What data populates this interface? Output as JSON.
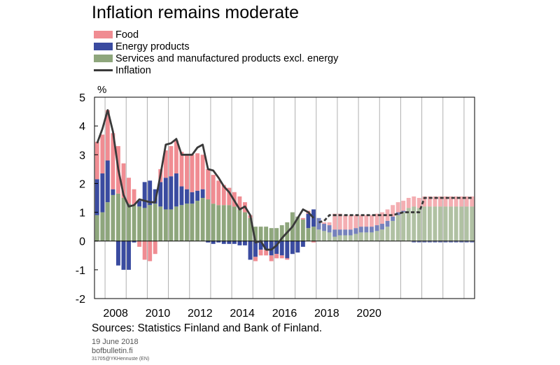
{
  "chart_data": {
    "type": "bar",
    "title": "Inflation remains moderate",
    "ylabel": "%",
    "ylim": [
      -2,
      5
    ],
    "yticks": [
      5,
      4,
      3,
      2,
      1,
      0,
      -1,
      -2
    ],
    "grid": "vertical year lines",
    "legend_placement": "top-left",
    "x_tick_labels": [
      "2008",
      "2010",
      "2012",
      "2014",
      "2016",
      "2018",
      "2020"
    ],
    "x_tick_years": [
      2008,
      2010,
      2012,
      2014,
      2016,
      2018,
      2020
    ],
    "x_start_year": 2007.5,
    "quarters_per_year": 4,
    "forecast_from_index": 42,
    "legend": [
      {
        "key": "food",
        "label": "Food",
        "color": "#f08c92"
      },
      {
        "key": "energy",
        "label": "Energy products",
        "color": "#3a4ba0"
      },
      {
        "key": "services",
        "label": "Services and manufactured products excl. energy",
        "color": "#8ea67c"
      },
      {
        "key": "inflation",
        "label": "Inflation",
        "color": "#3a3a3a"
      }
    ],
    "series": [
      {
        "name": "Services and manufactured products excl. energy",
        "key": "services",
        "values": [
          0.9,
          1.0,
          1.35,
          1.6,
          1.65,
          1.5,
          1.3,
          1.25,
          1.2,
          1.15,
          1.25,
          1.3,
          1.2,
          1.1,
          1.1,
          1.2,
          1.25,
          1.3,
          1.3,
          1.4,
          1.5,
          1.45,
          1.3,
          1.25,
          1.25,
          1.25,
          1.2,
          1.1,
          1.0,
          0.8,
          0.5,
          0.5,
          0.5,
          0.45,
          0.45,
          0.55,
          0.65,
          1.0,
          0.85,
          0.75,
          0.45,
          0.5,
          0.4,
          0.35,
          0.3,
          0.15,
          0.2,
          0.2,
          0.2,
          0.25,
          0.3,
          0.3,
          0.3,
          0.35,
          0.4,
          0.5,
          0.7,
          0.9,
          1.0,
          1.15,
          1.2,
          1.15,
          1.2,
          1.2,
          1.2,
          1.2,
          1.2,
          1.2,
          1.2,
          1.2,
          1.2,
          1.2
        ]
      },
      {
        "name": "Energy products",
        "key": "energy",
        "values": [
          1.25,
          1.35,
          1.45,
          0.2,
          -0.85,
          -1.0,
          -1.0,
          -0.05,
          0.2,
          0.9,
          0.85,
          0.5,
          0.85,
          1.1,
          1.15,
          1.15,
          0.65,
          0.5,
          0.4,
          0.35,
          0.3,
          -0.05,
          -0.1,
          -0.05,
          -0.1,
          -0.1,
          -0.1,
          -0.15,
          -0.15,
          -0.65,
          -0.55,
          -0.3,
          -0.3,
          -0.5,
          -0.45,
          -0.5,
          -0.6,
          -0.45,
          -0.4,
          -0.2,
          0.5,
          0.6,
          0.4,
          0.25,
          0.25,
          0.25,
          0.2,
          0.2,
          0.2,
          0.2,
          0.2,
          0.2,
          0.2,
          0.2,
          0.2,
          0.2,
          0.15,
          0.1,
          0.05,
          0.0,
          -0.05,
          -0.05,
          -0.05,
          -0.05,
          -0.05,
          -0.05,
          -0.05,
          -0.05,
          -0.05,
          -0.05,
          -0.05,
          -0.05
        ]
      },
      {
        "name": "Food",
        "key": "food",
        "values": [
          1.3,
          1.35,
          1.75,
          1.95,
          1.65,
          1.2,
          0.9,
          0.55,
          -0.2,
          -0.65,
          -0.7,
          -0.45,
          0.45,
          0.95,
          1.05,
          1.15,
          1.2,
          1.2,
          1.3,
          1.3,
          1.2,
          1.05,
          1.0,
          0.85,
          0.7,
          0.6,
          0.5,
          0.45,
          0.35,
          0.1,
          -0.15,
          -0.2,
          -0.2,
          -0.2,
          -0.15,
          -0.1,
          -0.05,
          0.0,
          0.0,
          0.05,
          0.1,
          -0.05,
          0.0,
          0.05,
          0.1,
          0.55,
          0.55,
          0.5,
          0.5,
          0.45,
          0.4,
          0.4,
          0.4,
          0.4,
          0.4,
          0.4,
          0.4,
          0.35,
          0.35,
          0.35,
          0.35,
          0.35,
          0.35,
          0.35,
          0.35,
          0.35,
          0.35,
          0.35,
          0.35,
          0.35,
          0.35,
          0.35
        ]
      },
      {
        "name": "Inflation",
        "key": "inflation",
        "type": "line",
        "values": [
          3.4,
          3.9,
          4.55,
          3.8,
          2.5,
          1.6,
          1.2,
          1.25,
          1.45,
          1.4,
          1.35,
          1.35,
          2.3,
          3.35,
          3.4,
          3.55,
          3.0,
          3.0,
          3.0,
          3.25,
          3.35,
          2.5,
          2.45,
          2.2,
          1.9,
          1.7,
          1.4,
          1.1,
          1.2,
          0.9,
          -0.05,
          0.0,
          -0.3,
          -0.3,
          -0.15,
          0.1,
          0.3,
          0.5,
          0.8,
          1.1,
          1.0,
          0.8,
          0.65,
          0.7,
          0.9,
          0.9,
          0.9,
          0.9,
          0.9,
          0.9,
          0.9,
          0.9,
          0.9,
          0.9,
          0.9,
          0.9,
          0.9,
          0.95,
          1.0,
          1.0,
          1.0,
          1.0,
          1.5,
          1.5,
          1.5,
          1.5,
          1.5,
          1.5,
          1.5,
          1.5,
          1.5,
          1.5
        ]
      }
    ]
  },
  "footer": {
    "sources": "Sources: Statistics Finland and Bank of Finland.",
    "date": "19 June 2018",
    "site": "bofbulletin.fi",
    "code": "31705@YKHennuste (EN)"
  }
}
